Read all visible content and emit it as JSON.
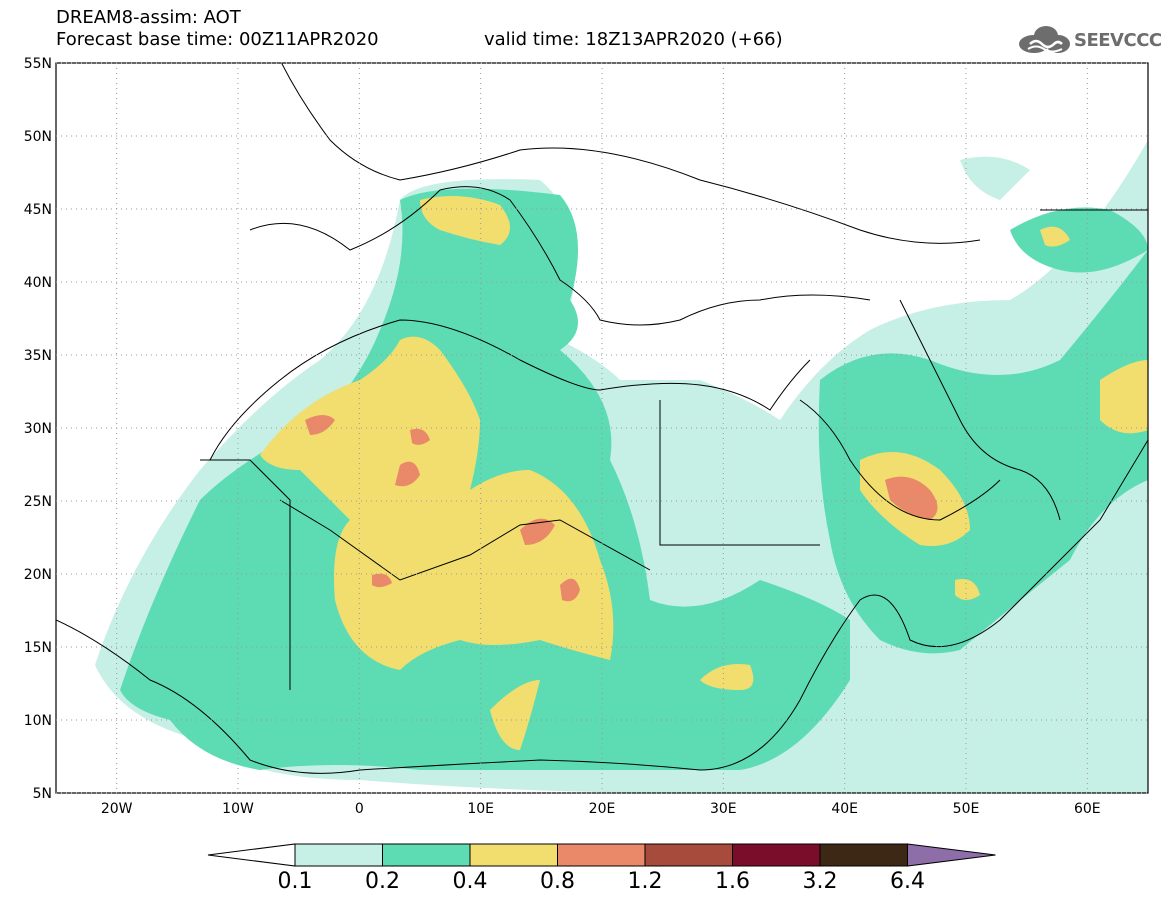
{
  "header": {
    "line1": "DREAM8-assim: AOT",
    "line2": "Forecast base time: 00Z11APR2020",
    "line3": "valid time: 18Z13APR2020 (+66)",
    "logo_text": "SEEVCCC"
  },
  "map": {
    "lon_ticks": [
      "20W",
      "10W",
      "0",
      "10E",
      "20E",
      "30E",
      "40E",
      "50E",
      "60E"
    ],
    "lat_ticks": [
      "55N",
      "50N",
      "45N",
      "40N",
      "35N",
      "30N",
      "25N",
      "20N",
      "15N",
      "10N",
      "5N"
    ]
  },
  "colorbar": {
    "levels": [
      "0.1",
      "0.2",
      "0.4",
      "0.8",
      "1.2",
      "1.6",
      "3.2",
      "6.4"
    ],
    "colors": [
      "#ffffff",
      "#c6efe6",
      "#5ddcb4",
      "#f2de6e",
      "#e9896a",
      "#a74b3c",
      "#7a0e2a",
      "#3d2715",
      "#8e6ea9"
    ]
  }
}
